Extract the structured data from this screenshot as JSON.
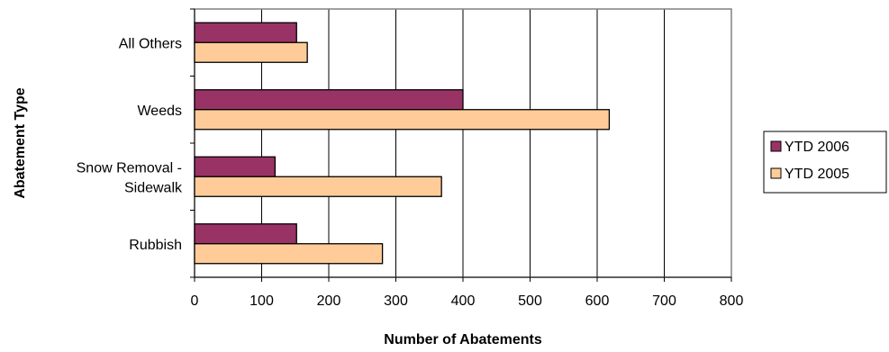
{
  "chart_data": {
    "type": "bar",
    "orientation": "horizontal",
    "title": "",
    "xlabel": "Number of Abatements",
    "ylabel": "Abatement Type",
    "xlim": [
      0,
      800
    ],
    "xticks": [
      0,
      100,
      200,
      300,
      400,
      500,
      600,
      700,
      800
    ],
    "grid": "vertical",
    "legend_position": "right",
    "categories": [
      {
        "lines": [
          "All Others"
        ]
      },
      {
        "lines": [
          "Weeds"
        ]
      },
      {
        "lines": [
          "Snow Removal -",
          "Sidewalk"
        ]
      },
      {
        "lines": [
          "Rubbish"
        ]
      }
    ],
    "series": [
      {
        "name": "YTD 2006",
        "color": "#993366",
        "values": [
          152,
          400,
          120,
          152
        ]
      },
      {
        "name": "YTD 2005",
        "color": "#FFCC99",
        "values": [
          168,
          618,
          368,
          280
        ]
      }
    ]
  }
}
